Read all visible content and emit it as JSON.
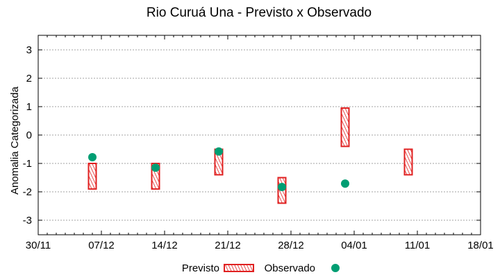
{
  "chart_data": {
    "type": "floating-bar-with-scatter",
    "title": "Rio Curuá Una - Previsto x Observado",
    "xlabel": "",
    "ylabel": "Anomalia Categorizada",
    "ylim": [
      -3.5,
      3.5
    ],
    "yticks": [
      -3,
      -2,
      -1,
      0,
      1,
      2,
      3
    ],
    "ytick_labels": [
      "-3",
      "-2",
      "-1",
      "0",
      "1",
      "2",
      "3"
    ],
    "xtick_labels": [
      "30/11",
      "07/12",
      "14/12",
      "21/12",
      "28/12",
      "04/01",
      "11/01",
      "18/01"
    ],
    "x_range": [
      "30/11",
      "18/01"
    ],
    "grid": "horizontal dotted",
    "legend_position": "bottom center",
    "series": [
      {
        "name": "Previsto",
        "style": "hatched red box (range)",
        "color": "#e02020",
        "points": [
          {
            "x": "06/12",
            "low": -1.9,
            "high": -1.0
          },
          {
            "x": "13/12",
            "low": -1.9,
            "high": -1.0
          },
          {
            "x": "20/12",
            "low": -1.4,
            "high": -0.5
          },
          {
            "x": "27/12",
            "low": -2.4,
            "high": -1.5
          },
          {
            "x": "03/01",
            "low": -0.4,
            "high": 0.95
          },
          {
            "x": "10/01",
            "low": -1.4,
            "high": -0.5
          }
        ]
      },
      {
        "name": "Observado",
        "style": "filled circle",
        "color": "#009e73",
        "points": [
          {
            "x": "06/12",
            "y": -0.78
          },
          {
            "x": "13/12",
            "y": -1.15
          },
          {
            "x": "20/12",
            "y": -0.58
          },
          {
            "x": "27/12",
            "y": -1.83
          },
          {
            "x": "03/01",
            "y": -1.71
          }
        ]
      }
    ]
  },
  "legend": {
    "previsto_label": "Previsto",
    "observado_label": "Observado"
  },
  "colors": {
    "previsto": "#e02020",
    "observado": "#009e73",
    "grid": "#a0a0a0",
    "frame": "#000000"
  }
}
